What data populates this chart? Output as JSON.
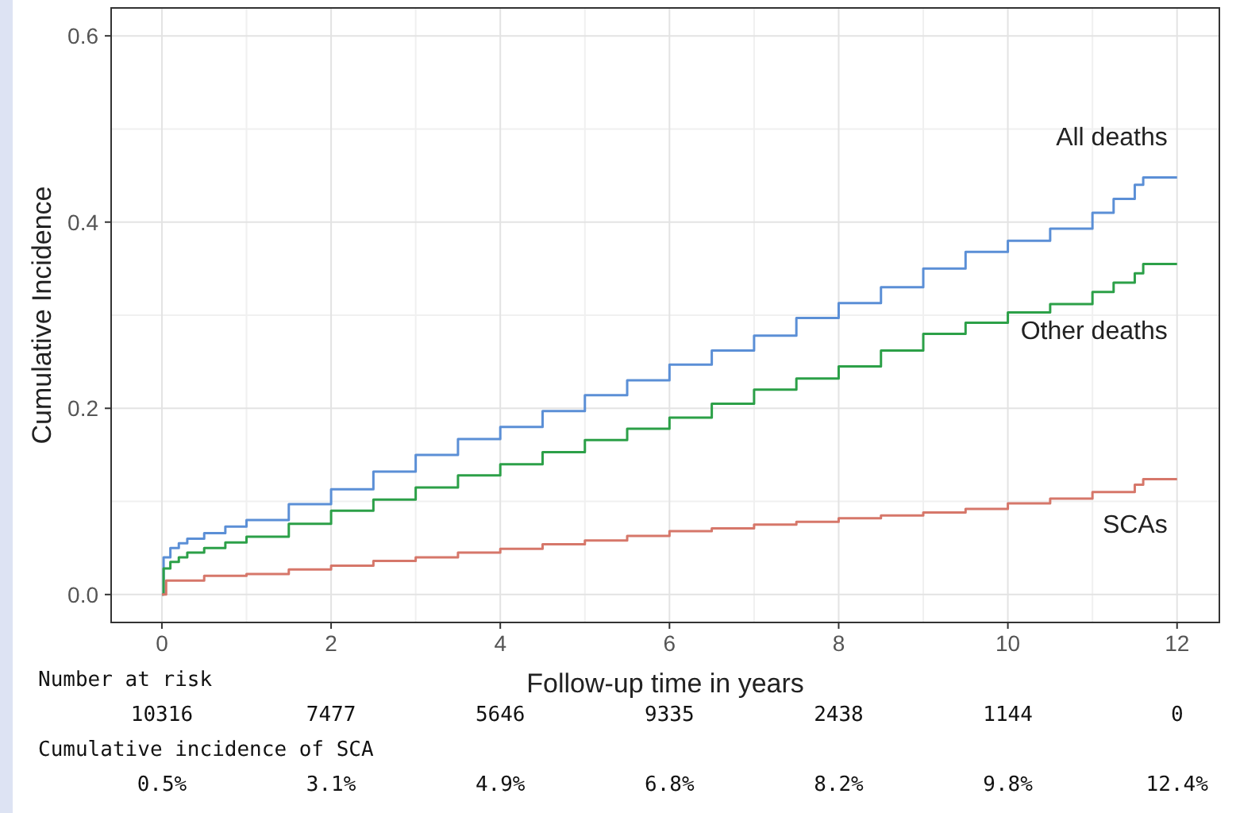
{
  "chart_data": {
    "type": "step",
    "xlabel": "Follow-up time in years",
    "ylabel": "Cumulative Incidence",
    "xlim": [
      -0.6,
      12.5
    ],
    "xticks": [
      0,
      2,
      4,
      6,
      8,
      10,
      12
    ],
    "ylim": [
      -0.03,
      0.63
    ],
    "yticks": [
      {
        "value": 0,
        "label": "0.0"
      },
      {
        "value": 0.2,
        "label": "0.2"
      },
      {
        "value": 0.4,
        "label": "0.4"
      },
      {
        "value": 0.6,
        "label": "0.6"
      }
    ],
    "grid": true,
    "legend": false,
    "marker": "none",
    "line_style": "solid",
    "series": [
      {
        "name": "All deaths",
        "color": "#5b8fd6",
        "x": [
          0,
          0.02,
          0.1,
          0.2,
          0.3,
          0.5,
          0.75,
          1,
          1.5,
          2,
          2.5,
          3,
          3.5,
          4,
          4.5,
          5,
          5.5,
          6,
          6.5,
          7,
          7.5,
          8,
          8.5,
          9,
          9.5,
          10,
          10.5,
          11,
          11.25,
          11.5,
          11.6,
          12
        ],
        "values": [
          0,
          0.04,
          0.05,
          0.055,
          0.06,
          0.066,
          0.073,
          0.08,
          0.097,
          0.113,
          0.132,
          0.15,
          0.167,
          0.18,
          0.197,
          0.214,
          0.23,
          0.247,
          0.262,
          0.278,
          0.297,
          0.313,
          0.33,
          0.35,
          0.368,
          0.38,
          0.393,
          0.41,
          0.425,
          0.44,
          0.448,
          0.448
        ]
      },
      {
        "name": "Other deaths",
        "color": "#2ca048",
        "x": [
          0,
          0.02,
          0.1,
          0.2,
          0.3,
          0.5,
          0.75,
          1,
          1.5,
          2,
          2.5,
          3,
          3.5,
          4,
          4.5,
          5,
          5.5,
          6,
          6.5,
          7,
          7.5,
          8,
          8.5,
          9,
          9.5,
          10,
          10.5,
          11,
          11.25,
          11.5,
          11.6,
          12
        ],
        "values": [
          0,
          0.028,
          0.035,
          0.04,
          0.045,
          0.05,
          0.056,
          0.062,
          0.076,
          0.09,
          0.102,
          0.115,
          0.128,
          0.14,
          0.153,
          0.166,
          0.178,
          0.19,
          0.205,
          0.22,
          0.232,
          0.245,
          0.262,
          0.28,
          0.292,
          0.303,
          0.312,
          0.325,
          0.335,
          0.345,
          0.355,
          0.355
        ]
      },
      {
        "name": "SCAs",
        "color": "#d6776a",
        "x": [
          0,
          0.05,
          0.5,
          1,
          1.5,
          2,
          2.5,
          3,
          3.5,
          4,
          4.5,
          5,
          5.5,
          6,
          6.5,
          7,
          7.5,
          8,
          8.5,
          9,
          9.5,
          10,
          10.5,
          11,
          11.5,
          11.6,
          12
        ],
        "values": [
          0,
          0.015,
          0.02,
          0.022,
          0.027,
          0.031,
          0.036,
          0.04,
          0.045,
          0.049,
          0.054,
          0.058,
          0.063,
          0.068,
          0.071,
          0.075,
          0.078,
          0.082,
          0.085,
          0.088,
          0.092,
          0.098,
          0.103,
          0.11,
          0.118,
          0.124,
          0.124
        ]
      }
    ],
    "annotations": [
      "Number at risk",
      "10316",
      "7477",
      "5646",
      "9335",
      "2438",
      "1144",
      "0",
      "Cumulative incidence of SCA",
      "0.5%",
      "3.1%",
      "4.9%",
      "6.8%",
      "8.2%",
      "9.8%",
      "12.4%"
    ]
  }
}
